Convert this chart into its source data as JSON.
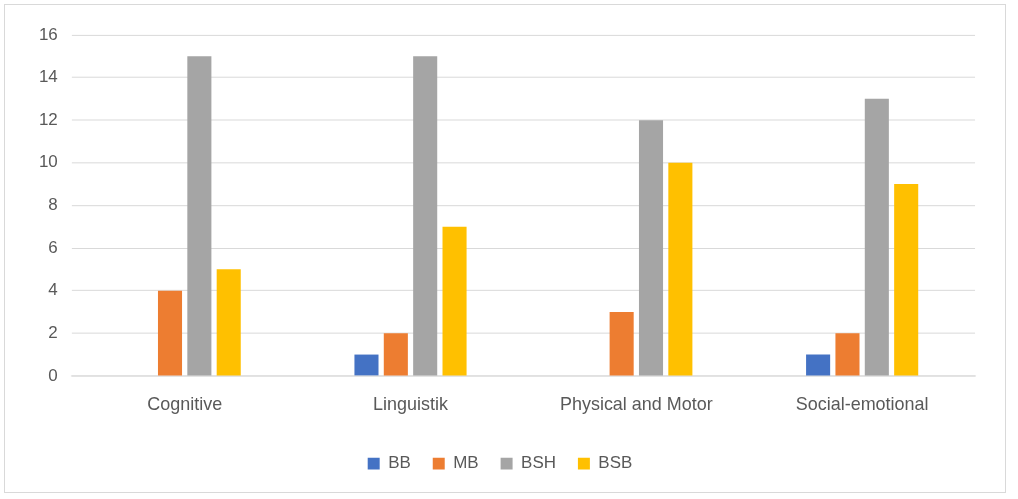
{
  "chart_data": {
    "type": "bar",
    "categories": [
      "Cognitive",
      "Linguistik",
      "Physical and Motor",
      "Social-emotional"
    ],
    "series": [
      {
        "name": "BB",
        "color": "#4472c4",
        "values": [
          0,
          1,
          0,
          1
        ]
      },
      {
        "name": "MB",
        "color": "#ed7d31",
        "values": [
          4,
          2,
          3,
          2
        ]
      },
      {
        "name": "BSH",
        "color": "#a5a5a5",
        "values": [
          15,
          15,
          12,
          13
        ]
      },
      {
        "name": "BSB",
        "color": "#ffc000",
        "values": [
          5,
          7,
          10,
          9
        ]
      }
    ],
    "ylim": [
      0,
      16
    ],
    "yticks": [
      0,
      2,
      4,
      6,
      8,
      10,
      12,
      14,
      16
    ],
    "grid": "y",
    "legend": "bottom"
  }
}
